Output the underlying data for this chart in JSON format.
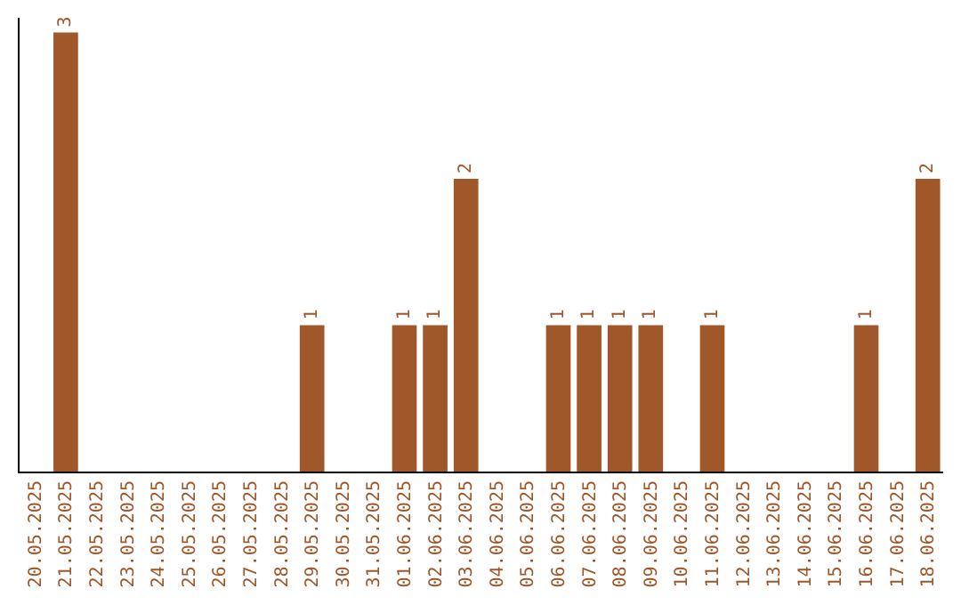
{
  "chart_data": {
    "type": "bar",
    "categories": [
      "20.05.2025",
      "21.05.2025",
      "22.05.2025",
      "23.05.2025",
      "24.05.2025",
      "25.05.2025",
      "26.05.2025",
      "27.05.2025",
      "28.05.2025",
      "29.05.2025",
      "30.05.2025",
      "31.05.2025",
      "01.06.2025",
      "02.06.2025",
      "03.06.2025",
      "04.06.2025",
      "05.06.2025",
      "06.06.2025",
      "07.06.2025",
      "08.06.2025",
      "09.06.2025",
      "10.06.2025",
      "11.06.2025",
      "12.06.2025",
      "13.06.2025",
      "14.06.2025",
      "15.06.2025",
      "16.06.2025",
      "17.06.2025",
      "18.06.2025"
    ],
    "values": [
      0,
      3,
      0,
      0,
      0,
      0,
      0,
      0,
      0,
      1,
      0,
      0,
      1,
      1,
      2,
      0,
      0,
      1,
      1,
      1,
      1,
      0,
      1,
      0,
      0,
      0,
      0,
      1,
      0,
      2
    ],
    "value_labels": [
      null,
      "3",
      null,
      null,
      null,
      null,
      null,
      null,
      null,
      "1",
      null,
      null,
      "1",
      "1",
      "2",
      null,
      null,
      "1",
      "1",
      "1",
      "1",
      null,
      "1",
      null,
      null,
      null,
      null,
      "1",
      null,
      "2"
    ],
    "color": "#a0572a",
    "ylim": [
      0,
      3.1
    ],
    "tick_labels": "x"
  }
}
